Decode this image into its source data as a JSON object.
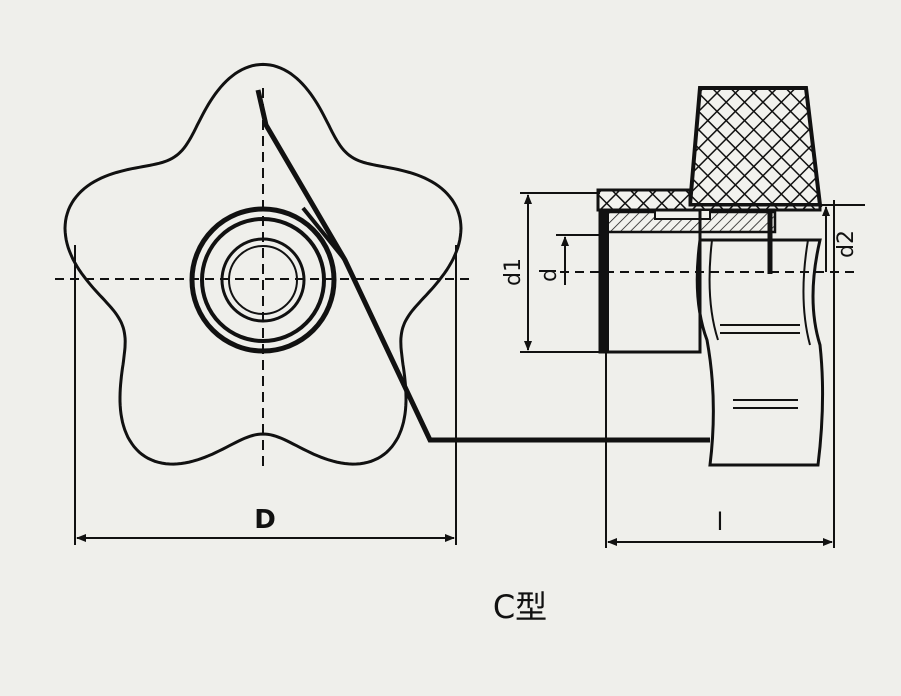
{
  "labels": {
    "D": "D",
    "l": "l",
    "d1": "d1",
    "d": "d",
    "d2": "d2",
    "type": "C型"
  },
  "colors": {
    "background": "#efefeb",
    "ink": "#111111"
  }
}
